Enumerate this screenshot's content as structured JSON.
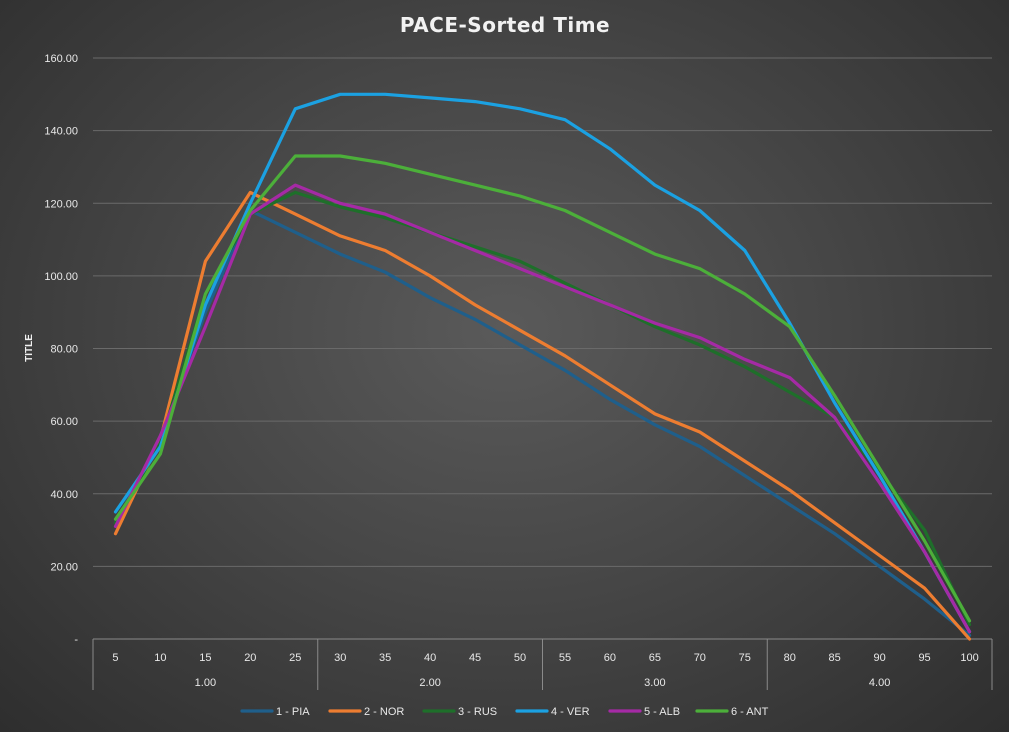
{
  "chart_data": {
    "type": "line",
    "title": "PACE-Sorted Time",
    "xlabel": "",
    "ylabel": "TITLE",
    "ylim": [
      0,
      160
    ],
    "yticks": [
      0,
      20,
      40,
      60,
      80,
      100,
      120,
      140,
      160
    ],
    "ytick_labels": [
      "-",
      "20.00",
      "40.00",
      "60.00",
      "80.00",
      "100.00",
      "120.00",
      "140.00",
      "160.00"
    ],
    "categories": [
      "5",
      "10",
      "15",
      "20",
      "25",
      "30",
      "35",
      "40",
      "45",
      "50",
      "55",
      "60",
      "65",
      "70",
      "75",
      "80",
      "85",
      "90",
      "95",
      "100"
    ],
    "groups": [
      {
        "label": "1.00",
        "span": 5
      },
      {
        "label": "2.00",
        "span": 5
      },
      {
        "label": "3.00",
        "span": 5
      },
      {
        "label": "4.00",
        "span": 5
      }
    ],
    "grid": true,
    "legend_position": "bottom",
    "series": [
      {
        "name": "1 - PIA",
        "color": "#1f5f8b",
        "values": [
          32,
          55,
          90,
          118,
          112,
          106,
          101,
          94,
          88,
          81,
          74,
          66,
          59,
          53,
          45,
          37,
          29,
          20,
          11,
          1
        ]
      },
      {
        "name": "2 - NOR",
        "color": "#ed7d31",
        "values": [
          29,
          55,
          104,
          123,
          117,
          111,
          107,
          100,
          92,
          85,
          78,
          70,
          62,
          57,
          49,
          41,
          32,
          23,
          14,
          0
        ]
      },
      {
        "name": "3 - RUS",
        "color": "#1e6f2a",
        "values": [
          32,
          54,
          95,
          117,
          123,
          119,
          116,
          112,
          108,
          104,
          98,
          92,
          86,
          81,
          75,
          68,
          61,
          46,
          30,
          4
        ]
      },
      {
        "name": "4 - VER",
        "color": "#1ba1e2",
        "values": [
          35,
          53,
          92,
          120,
          146,
          150,
          150,
          149,
          148,
          146,
          143,
          135,
          125,
          118,
          107,
          87,
          65,
          45,
          24,
          2
        ]
      },
      {
        "name": "5 - ALB",
        "color": "#a52aa5",
        "values": [
          31,
          56,
          86,
          117,
          125,
          120,
          117,
          112,
          107,
          102,
          97,
          92,
          87,
          83,
          77,
          72,
          61,
          43,
          24,
          2
        ]
      },
      {
        "name": "6 - ANT",
        "color": "#4caf3a",
        "values": [
          33,
          51,
          95,
          118,
          133,
          133,
          131,
          128,
          125,
          122,
          118,
          112,
          106,
          102,
          95,
          86,
          67,
          47,
          27,
          5
        ]
      }
    ]
  }
}
